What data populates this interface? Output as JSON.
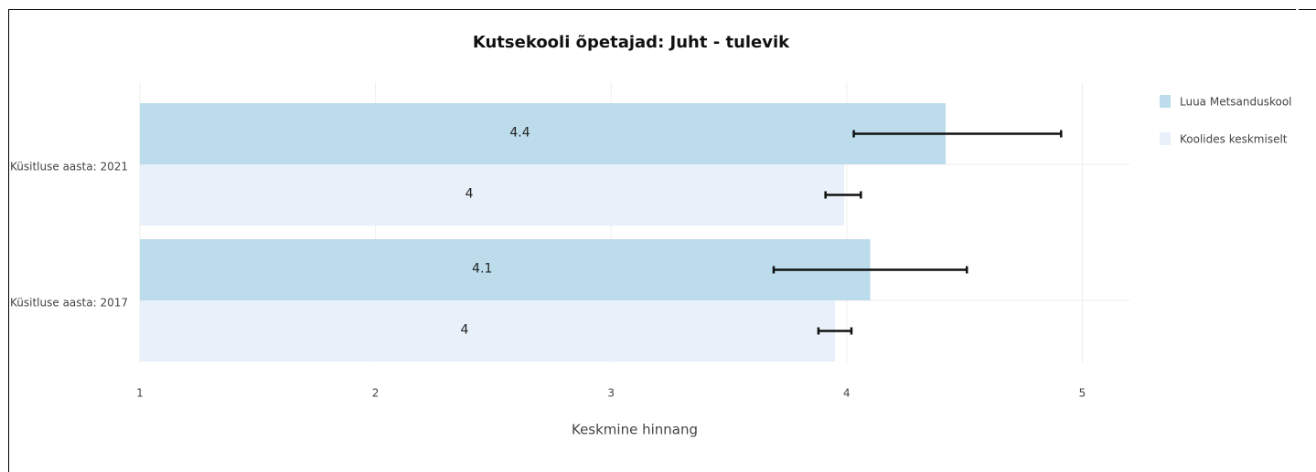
{
  "chart_data": {
    "type": "bar",
    "orientation": "horizontal",
    "title": "Kutsekooli õpetajad: Juht - tulevik",
    "x_label": "Keskmine hinnang",
    "categories": [
      "Küsitluse aasta: 2021",
      "Küsitluse aasta: 2017"
    ],
    "series": [
      {
        "name": "Luua Metsanduskool",
        "color": "#bcdceb",
        "values": [
          4.42,
          4.1
        ],
        "value_labels": [
          "4.4",
          "4.1"
        ],
        "error_minus": [
          0.39,
          0.41
        ],
        "error_plus": [
          0.49,
          0.41
        ]
      },
      {
        "name": "Koolides keskmiselt",
        "color": "#e8f0f9",
        "values": [
          3.99,
          3.95
        ],
        "value_labels": [
          "4",
          "4"
        ],
        "error_minus": [
          0.08,
          0.07
        ],
        "error_plus": [
          0.07,
          0.07
        ]
      }
    ],
    "xlim": [
      1,
      5.2
    ],
    "xticks": [
      1,
      2,
      3,
      4,
      5
    ],
    "grid": true,
    "legend": "right"
  }
}
